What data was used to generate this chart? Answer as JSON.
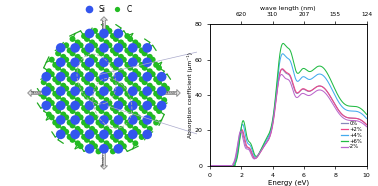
{
  "si_color": "#3355ee",
  "c_color": "#22bb22",
  "bond_color": "#22aa22",
  "bg_color": "#ffffff",
  "arrow_fc": "#dddddd",
  "arrow_ec": "#999999",
  "graph_bg": "#ffffff",
  "ylabel": "Absorption coefficient (μm⁻¹)",
  "xlabel": "Energy (eV)",
  "xlabel2": "wave length (nm)",
  "xticks2": [
    620,
    310,
    207,
    155,
    124
  ],
  "xticks2_pos": [
    2,
    4,
    6,
    8,
    10
  ],
  "ylim": [
    0,
    80
  ],
  "yticks": [
    0,
    20,
    40,
    60,
    80
  ],
  "xlim": [
    0,
    10
  ],
  "legend_labels": [
    "0%",
    "+2%",
    "+4%",
    "+6%",
    "-2%"
  ],
  "legend_colors": [
    "#8888bb",
    "#ee4488",
    "#44aaee",
    "#22bb44",
    "#bb66cc"
  ]
}
